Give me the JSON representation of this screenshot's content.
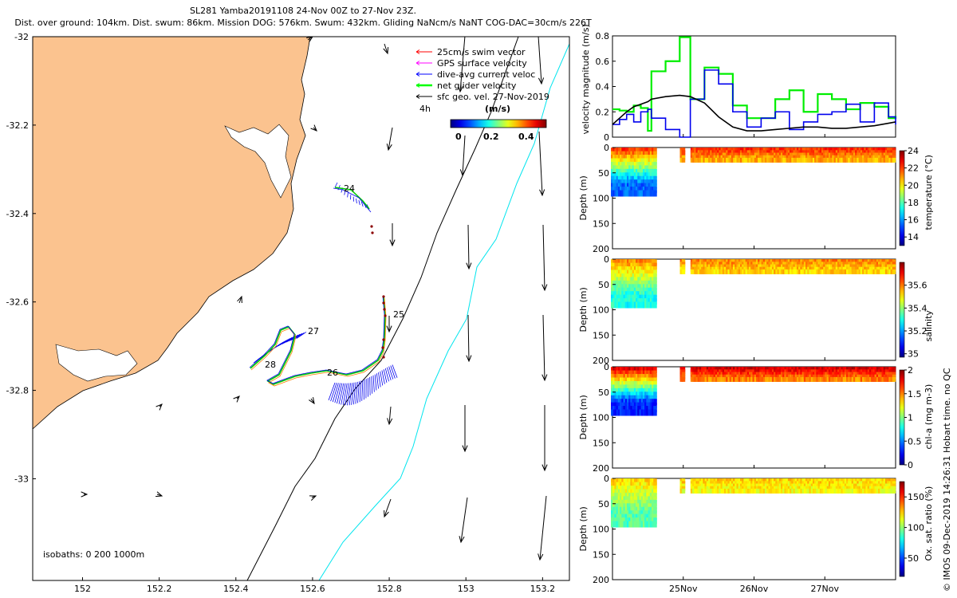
{
  "header": {
    "line1": "SL281 Yamba20191108 24-Nov 00Z to 27-Nov 23Z.",
    "line2": "Dist. over ground: 104km. Dist. swum: 86km. Mission DOG: 576km. Swum: 432km. Gliding NaNcm/s NaNT COG-DAC=30cm/s 226T"
  },
  "footer": "© IMOS 09-Dec-2019 14:26:31 Hobart time. no QC",
  "map": {
    "legend": [
      {
        "label": "25cm/s swim vector",
        "color": "#ff0000"
      },
      {
        "label": "GPS surface velocity",
        "color": "#ff00ff"
      },
      {
        "label": "dive-avg current veloc",
        "color": "#0000ff"
      },
      {
        "label": "net glider velocity",
        "color": "#00ff00"
      },
      {
        "label": "sfc geo. vel. 27-Nov-2019",
        "color": "#000000"
      }
    ],
    "interval_label": "4h",
    "colorbar_title": "(m/s)",
    "colorbar_ticks": [
      "0",
      "0.2",
      "0.4"
    ],
    "isobath_label": "isobaths: 0   200  1000m",
    "x_ticks": [
      "152",
      "152.2",
      "152.4",
      "152.6",
      "152.8",
      "153",
      "153.2"
    ],
    "y_ticks": [
      "-32",
      "-32.2",
      "-32.4",
      "-32.6",
      "-32.8",
      "-33"
    ],
    "xlim": [
      151.87,
      153.27
    ],
    "ylim": [
      -32.0,
      -33.23
    ],
    "day_labels": [
      "24",
      "25",
      "26",
      "27",
      "28"
    ],
    "land_color": "#fbc38f",
    "isobath_200_color": "#000000",
    "isobath_1000_color": "#00e5ee"
  },
  "chart_data": [
    {
      "type": "line",
      "title": "velocity magnitude",
      "ylabel": "velocity magnitude (m/s)",
      "ylim": [
        0,
        0.8
      ],
      "yticks": [
        "0",
        "0.2",
        "0.4",
        "0.6",
        "0.8"
      ],
      "x_days": [
        24.0,
        24.1,
        24.2,
        24.3,
        24.4,
        24.5,
        24.55,
        24.75,
        24.95,
        25.1,
        25.3,
        25.5,
        25.7,
        25.9,
        26.1,
        26.3,
        26.5,
        26.7,
        26.9,
        27.1,
        27.3,
        27.5,
        27.7,
        27.9,
        28.0
      ],
      "series": [
        {
          "name": "net glider velocity",
          "color": "#00ee00",
          "values": [
            0.22,
            0.21,
            0.2,
            0.25,
            0.23,
            0.05,
            0.52,
            0.6,
            0.79,
            0.3,
            0.55,
            0.5,
            0.25,
            0.15,
            0.15,
            0.3,
            0.37,
            0.2,
            0.34,
            0.3,
            0.22,
            0.27,
            0.24,
            0.15,
            0.17
          ]
        },
        {
          "name": "dive-avg current veloc",
          "color": "#0000ee",
          "values": [
            0.1,
            0.14,
            0.18,
            0.12,
            0.2,
            0.22,
            0.15,
            0.06,
            0.0,
            0.3,
            0.53,
            0.42,
            0.2,
            0.08,
            0.15,
            0.2,
            0.06,
            0.12,
            0.18,
            0.2,
            0.26,
            0.12,
            0.27,
            0.16,
            0.1
          ]
        },
        {
          "name": "sfc geo. vel.",
          "color": "#000000",
          "values": [
            0.1,
            0.15,
            0.2,
            0.24,
            0.26,
            0.28,
            0.3,
            0.32,
            0.33,
            0.32,
            0.27,
            0.16,
            0.08,
            0.05,
            0.05,
            0.06,
            0.07,
            0.08,
            0.08,
            0.07,
            0.07,
            0.08,
            0.09,
            0.11,
            0.12
          ]
        }
      ]
    },
    {
      "type": "scatter",
      "variable": "temperature",
      "ylabel": "Depth (m)",
      "cbar_label": "temperature (°C)",
      "ylim": [
        200,
        0
      ],
      "yticks": [
        "0",
        "50",
        "100",
        "150",
        "200"
      ],
      "cbar_range": [
        13,
        24
      ],
      "cbar_ticks": [
        "14",
        "16",
        "18",
        "20",
        "22",
        "24"
      ],
      "surface_value": 22.5,
      "deep_value": 15.5
    },
    {
      "type": "scatter",
      "variable": "salinity",
      "ylabel": "Depth (m)",
      "cbar_label": "salinity",
      "ylim": [
        200,
        0
      ],
      "yticks": [
        "0",
        "50",
        "100",
        "150",
        "200"
      ],
      "cbar_range": [
        34.97,
        35.8
      ],
      "cbar_ticks": [
        "35",
        "35.2",
        "35.4",
        "35.6"
      ],
      "surface_value": 35.6,
      "deep_value": 35.3
    },
    {
      "type": "scatter",
      "variable": "chl-a",
      "ylabel": "Depth (m)",
      "cbar_label": "chl-a (mg m-3)",
      "ylim": [
        200,
        0
      ],
      "yticks": [
        "0",
        "50",
        "100",
        "150",
        "200"
      ],
      "cbar_range": [
        0,
        2
      ],
      "cbar_ticks": [
        "0",
        "0.5",
        "1",
        "1.5",
        "2"
      ],
      "surface_value": 1.9,
      "deep_value": 0.3
    },
    {
      "type": "scatter",
      "variable": "oxygen saturation",
      "ylabel": "Depth (m)",
      "cbar_label": "Ox. sat. ratio (%)",
      "ylim": [
        200,
        0
      ],
      "yticks": [
        "0",
        "50",
        "100",
        "150",
        "200"
      ],
      "cbar_range": [
        20,
        175
      ],
      "cbar_ticks": [
        "50",
        "100",
        "150"
      ],
      "surface_value": 125,
      "deep_value": 90
    }
  ],
  "time_axis": {
    "labels": [
      "25Nov",
      "26Nov",
      "27Nov"
    ],
    "days": [
      25,
      26,
      27
    ],
    "range": [
      24.0,
      28.0
    ]
  }
}
